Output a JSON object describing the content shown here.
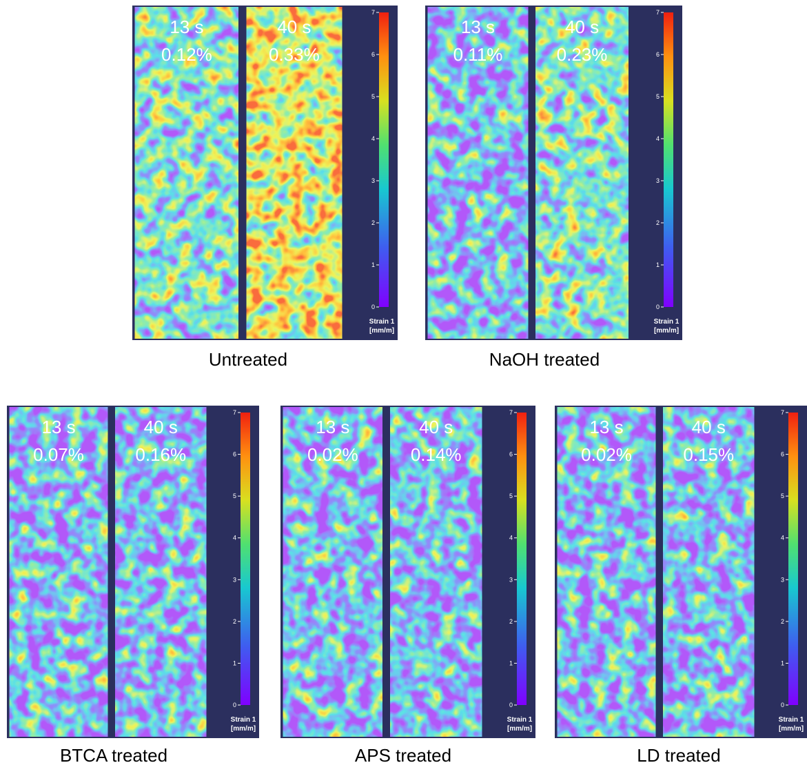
{
  "colorbar": {
    "ticks": [
      0,
      1,
      2,
      3,
      4,
      5,
      6,
      7
    ],
    "label": "Strain 1",
    "unit": "[mm/m]"
  },
  "panels": [
    {
      "label": "Untreated",
      "strips": [
        {
          "time": "13 s",
          "strain": "0.12%"
        },
        {
          "time": "40 s",
          "strain": "0.33%"
        }
      ]
    },
    {
      "label": "NaOH treated",
      "strips": [
        {
          "time": "13 s",
          "strain": "0.11%"
        },
        {
          "time": "40 s",
          "strain": "0.23%"
        }
      ]
    },
    {
      "label": "BTCA treated",
      "strips": [
        {
          "time": "13 s",
          "strain": "0.07%"
        },
        {
          "time": "40 s",
          "strain": "0.16%"
        }
      ]
    },
    {
      "label": "APS treated",
      "strips": [
        {
          "time": "13 s",
          "strain": "0.02%"
        },
        {
          "time": "40 s",
          "strain": "0.14%"
        }
      ]
    },
    {
      "label": "LD treated",
      "strips": [
        {
          "time": "13 s",
          "strain": "0.02%"
        },
        {
          "time": "40 s",
          "strain": "0.15%"
        }
      ]
    }
  ]
}
